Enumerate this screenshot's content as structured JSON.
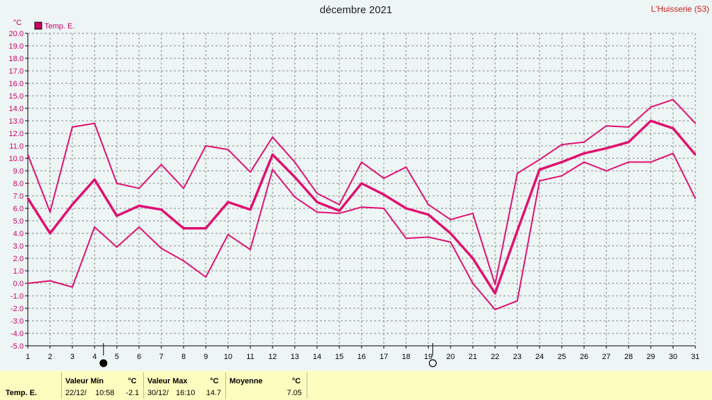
{
  "header": {
    "title": "décembre 2021",
    "station": "L'Huisserie (53)"
  },
  "legend": {
    "label": "Temp. E.",
    "color": "#cc0066"
  },
  "axis": {
    "y_unit": "°C"
  },
  "chart_data": {
    "type": "line",
    "title": "décembre 2021",
    "ylabel": "°C",
    "ylim": [
      -5.0,
      20.0
    ],
    "xlim": [
      1,
      31
    ],
    "y_ticks": [
      "-5.0",
      "-4.0",
      "-3.0",
      "-2.0",
      "-1.0",
      "0.0",
      "1.0",
      "2.0",
      "3.0",
      "4.0",
      "5.0",
      "6.0",
      "7.0",
      "8.0",
      "9.0",
      "10.0",
      "11.0",
      "12.0",
      "13.0",
      "14.0",
      "15.0",
      "16.0",
      "17.0",
      "18.0",
      "19.0",
      "20.0"
    ],
    "x_ticks": [
      "1",
      "2",
      "3",
      "4",
      "5",
      "6",
      "7",
      "8",
      "9",
      "10",
      "11",
      "12",
      "13",
      "14",
      "15",
      "16",
      "17",
      "18",
      "19",
      "20",
      "21",
      "22",
      "23",
      "24",
      "25",
      "26",
      "27",
      "28",
      "29",
      "30",
      "31"
    ],
    "grid": true,
    "legend_position": "top-left",
    "moon_phases": [
      {
        "x": 4.4,
        "phase": "new"
      },
      {
        "x": 19.2,
        "phase": "full"
      }
    ],
    "series": [
      {
        "name": "Temp. E.",
        "role": "max",
        "color": "#e01070",
        "x": [
          1,
          2,
          3,
          4,
          5,
          6,
          7,
          8,
          9,
          10,
          11,
          12,
          13,
          14,
          15,
          16,
          17,
          18,
          19,
          20,
          21,
          22,
          23,
          24,
          25,
          26,
          27,
          28,
          29,
          30,
          31
        ],
        "values": [
          10.3,
          5.7,
          12.5,
          12.8,
          8.0,
          7.6,
          9.5,
          7.6,
          11.0,
          10.7,
          8.9,
          11.7,
          9.7,
          7.2,
          6.3,
          9.7,
          8.4,
          9.3,
          6.3,
          5.1,
          5.6,
          -0.1,
          8.8,
          9.9,
          11.1,
          11.3,
          12.6,
          12.5,
          14.1,
          14.7,
          12.8
        ]
      },
      {
        "name": "Temp. E.",
        "role": "mean",
        "color": "#e01070",
        "x": [
          1,
          2,
          3,
          4,
          5,
          6,
          7,
          8,
          9,
          10,
          11,
          12,
          13,
          14,
          15,
          16,
          17,
          18,
          19,
          20,
          21,
          22,
          23,
          24,
          25,
          26,
          27,
          28,
          29,
          30,
          31
        ],
        "values": [
          6.8,
          4.0,
          6.3,
          8.3,
          5.4,
          6.2,
          5.9,
          4.4,
          4.4,
          6.5,
          5.9,
          10.3,
          8.5,
          6.5,
          5.8,
          8.0,
          7.1,
          6.0,
          5.5,
          4.0,
          2.0,
          -0.8,
          4.2,
          9.1,
          9.7,
          10.4,
          10.8,
          11.3,
          13.0,
          12.4,
          10.3
        ]
      },
      {
        "name": "Temp. E.",
        "role": "min",
        "color": "#e01070",
        "x": [
          1,
          2,
          3,
          4,
          5,
          6,
          7,
          8,
          9,
          10,
          11,
          12,
          13,
          14,
          15,
          16,
          17,
          18,
          19,
          20,
          21,
          22,
          23,
          24,
          25,
          26,
          27,
          28,
          29,
          30,
          31
        ],
        "values": [
          0.0,
          0.2,
          -0.3,
          4.5,
          2.9,
          4.5,
          2.8,
          1.8,
          0.5,
          3.9,
          2.7,
          9.1,
          6.9,
          5.7,
          5.6,
          6.1,
          6.0,
          3.6,
          3.7,
          3.3,
          0.0,
          -2.1,
          -1.4,
          8.2,
          8.6,
          9.7,
          9.0,
          9.7,
          9.7,
          10.4,
          6.8
        ]
      }
    ]
  },
  "summary": {
    "row_label": "Temp. E.",
    "min": {
      "header": "Valeur Min",
      "unit": "°C",
      "date": "22/12/",
      "time": "10:58",
      "value": "-2.1"
    },
    "max": {
      "header": "Valeur Max",
      "unit": "°C",
      "date": "30/12/",
      "time": "16:10",
      "value": "14.7"
    },
    "mean": {
      "header": "Moyenne",
      "unit": "°C",
      "value": "7.05"
    }
  }
}
